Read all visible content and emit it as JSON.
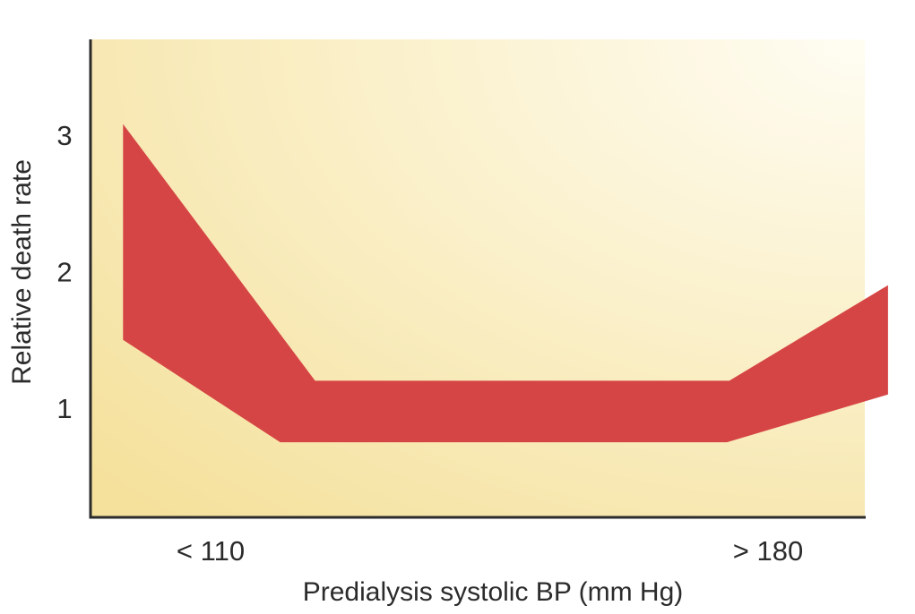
{
  "chart_data": {
    "type": "area",
    "title": "",
    "xlabel": "Predialysis systolic BP (mm Hg)",
    "ylabel": "Relative death rate",
    "x_tick_labels": [
      "< 110",
      "> 180"
    ],
    "y_ticks": [
      1,
      2,
      3
    ],
    "ylim": [
      0.2,
      3.7
    ],
    "xlim": [
      0,
      100
    ],
    "grid": false,
    "band": {
      "x": [
        4.2,
        24.5,
        29.0,
        82.5,
        86.9,
        103.0
      ],
      "upper": [
        3.08,
        1.53,
        1.2,
        1.2,
        1.2,
        1.9
      ],
      "lower": [
        1.5,
        0.86,
        0.75,
        0.75,
        0.75,
        1.1
      ],
      "upper_x": [
        4.2,
        29.0,
        82.5,
        103.0
      ],
      "upper_y": [
        3.08,
        1.2,
        1.2,
        1.9
      ],
      "lower_x": [
        4.2,
        24.5,
        82.2,
        103.0
      ],
      "lower_y": [
        1.5,
        0.75,
        0.75,
        1.1
      ]
    },
    "colors": {
      "band": "#d64545",
      "background_light": "#fffdf3",
      "background_dark": "#f5e19c",
      "axis": "#2b2b2b"
    }
  }
}
